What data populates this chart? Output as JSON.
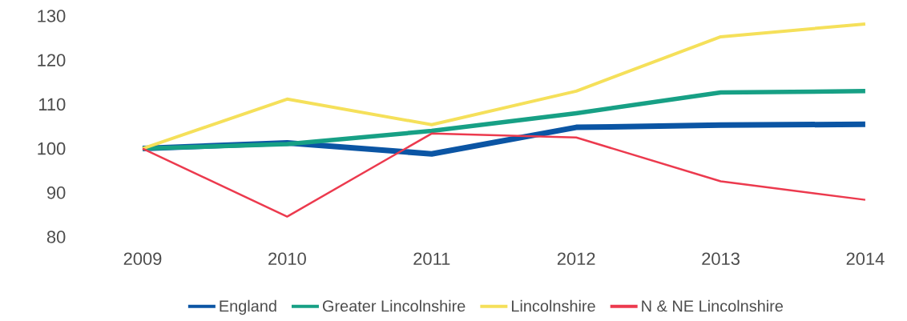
{
  "chart_data": {
    "type": "line",
    "categories": [
      "2009",
      "2010",
      "2011",
      "2012",
      "2013",
      "2014"
    ],
    "series": [
      {
        "name": "England",
        "color": "#0b55a4",
        "values": [
          100,
          101.3,
          98.8,
          104.8,
          105.3,
          105.5
        ]
      },
      {
        "name": "Greater Lincolnshire",
        "color": "#17a085",
        "values": [
          100,
          101,
          104,
          108,
          112.7,
          113
        ]
      },
      {
        "name": "Lincolnshire",
        "color": "#f5e05a",
        "values": [
          100,
          111.2,
          105.4,
          113,
          125.3,
          128.2
        ]
      },
      {
        "name": "N & NE Lincolnshire",
        "color": "#ec3a4e",
        "values": [
          100,
          84.6,
          103.4,
          102.5,
          92.6,
          88.4
        ]
      }
    ],
    "ylim": [
      80,
      130
    ],
    "yticks": [
      80,
      90,
      100,
      110,
      120,
      130
    ],
    "grid": false,
    "legend": "bottom",
    "marker": "none",
    "line_style": "solid"
  }
}
